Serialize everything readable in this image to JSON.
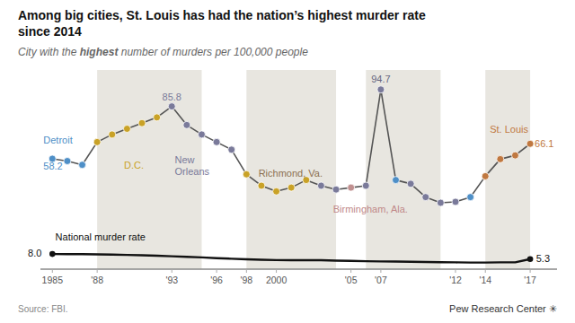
{
  "chart_data": {
    "type": "line",
    "title": [
      "Among big cities, St. Louis has had the nation’s highest murder rate",
      "since 2014"
    ],
    "subtitle": [
      "City with the ",
      "highest",
      " number of murders per 100,000 people"
    ],
    "x": [
      1985,
      1986,
      1987,
      1988,
      1989,
      1990,
      1991,
      1992,
      1993,
      1994,
      1995,
      1996,
      1997,
      1998,
      1999,
      2000,
      2001,
      2002,
      2003,
      2004,
      2005,
      2006,
      2007,
      2008,
      2009,
      2010,
      2011,
      2012,
      2013,
      2014,
      2015,
      2016,
      2017
    ],
    "series": [
      {
        "color": "#555555",
        "marker": "circle",
        "colors": [
          "#4e8fc7",
          "#4e8fc7",
          "#4e8fc7",
          "#c9a227",
          "#c9a227",
          "#c9a227",
          "#c9a227",
          "#c9a227",
          "#7a7a9a",
          "#7a7a9a",
          "#7a7a9a",
          "#7a7a9a",
          "#7a7a9a",
          "#c9a227",
          "#c9a227",
          "#c9a227",
          "#c9a227",
          "#c9a227",
          "#7a7a9a",
          "#7a7a9a",
          "#c09090",
          "#7a7a9a",
          "#7a7a9a",
          "#4e8fc7",
          "#7a7a9a",
          "#7a7a9a",
          "#7a7a9a",
          "#7a7a9a",
          "#4e8fc7",
          "#c07840",
          "#c07840",
          "#c07840",
          "#c07840"
        ],
        "values": [
          58.2,
          57.0,
          55.0,
          67.0,
          71.0,
          74.0,
          77.0,
          80.0,
          85.8,
          76.0,
          71.0,
          67.0,
          63.0,
          50.0,
          44.0,
          41.0,
          43.0,
          47.0,
          44.0,
          42.0,
          43.0,
          44.0,
          94.7,
          47.0,
          45.0,
          38.0,
          35.0,
          35.5,
          38.0,
          49.0,
          58.0,
          60.0,
          66.1
        ]
      },
      {
        "color": "#111111",
        "marker": "ends",
        "values": [
          8.0,
          7.95,
          7.9,
          7.8,
          7.7,
          7.5,
          7.3,
          7.1,
          6.8,
          6.5,
          6.2,
          5.8,
          5.5,
          5.2,
          5.0,
          4.8,
          4.7,
          4.8,
          4.7,
          4.5,
          4.4,
          4.2,
          4.1,
          4.0,
          3.9,
          3.8,
          3.7,
          3.6,
          3.5,
          3.5,
          3.6,
          3.6,
          5.3
        ]
      }
    ],
    "bands": [
      [
        1988,
        1995
      ],
      [
        1998,
        2004
      ],
      [
        2006,
        2011
      ],
      [
        2014,
        2017
      ]
    ],
    "band_color": "#e8e6e0",
    "xlim": [
      1984.2,
      2018.8
    ],
    "ylim": [
      0,
      105
    ],
    "xticks": [
      1985,
      {
        "value": 1988,
        "label": "'88"
      },
      {
        "value": 1993,
        "label": "'93"
      },
      {
        "value": 1996,
        "label": "'96"
      },
      {
        "value": 1998,
        "label": "'98"
      },
      2000,
      {
        "value": 2005,
        "label": "'05"
      },
      {
        "value": 2007,
        "label": "'07"
      },
      {
        "value": 2012,
        "label": "'12"
      },
      {
        "value": 2014,
        "label": "'14"
      },
      {
        "value": 2017,
        "label": "'17"
      }
    ],
    "tick_labels": "x",
    "grid": false,
    "annotations": [
      {
        "text": "Detroit",
        "x": 1984.4,
        "y": 65,
        "position": "above",
        "color": "#4e8fc7"
      },
      {
        "text": "58.2",
        "x": 1984.4,
        "y": 57.5,
        "position": "below",
        "color": "#4e8fc7"
      },
      {
        "text": "D.C.",
        "x": 1989.8,
        "y": 58,
        "position": "below",
        "color": "#c9a227"
      },
      {
        "text": "New\nOrleans",
        "x": 1993.2,
        "y": 61,
        "position": "below",
        "color": "#7a7a9a"
      },
      {
        "text": "85.8",
        "x": 1993.0,
        "y": 87.5,
        "position": "above-center",
        "color": "#7a7a9a"
      },
      {
        "text": "Richmond, Va.",
        "x": 1998.8,
        "y": 54,
        "position": "below",
        "color": "#8b7050"
      },
      {
        "text": "Birmingham, Ala.",
        "x": 2003.8,
        "y": 35,
        "position": "below",
        "color": "#c08888"
      },
      {
        "text": "94.7",
        "x": 2007.0,
        "y": 97,
        "position": "above-center",
        "color": "#666680"
      },
      {
        "text": "St. Louis",
        "x": 2014.3,
        "y": 74,
        "position": "right",
        "color": "#c07840"
      },
      {
        "text": "66.1",
        "x": 2017.3,
        "y": 66.1,
        "position": "right",
        "color": "#c07840"
      },
      {
        "text": "National murder rate",
        "x": 1985.2,
        "y": 13.5,
        "position": "above",
        "color": "#111111"
      },
      {
        "text": "8.0",
        "x": 1984.4,
        "y": 8.5,
        "position": "left",
        "color": "#111111"
      },
      {
        "text": "5.3",
        "x": 2017.4,
        "y": 5.8,
        "position": "right",
        "color": "#111111"
      }
    ],
    "source": "Source: FBI.",
    "branding": "Pew Research Center ✳"
  }
}
